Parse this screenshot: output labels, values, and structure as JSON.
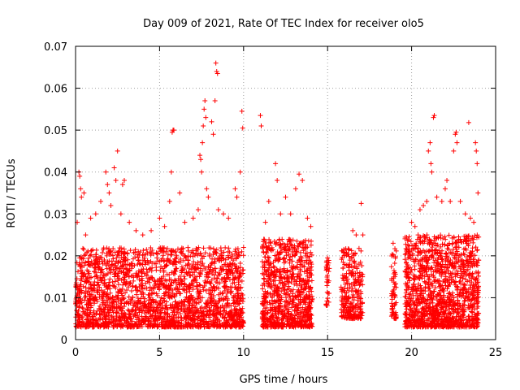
{
  "chart_data": {
    "type": "scatter",
    "title": "Day 009 of 2021, Rate Of TEC Index for receiver olo5",
    "xlabel": "GPS time / hours",
    "ylabel": "ROTI / TECUs",
    "xlim": [
      0,
      25
    ],
    "ylim": [
      0,
      0.07
    ],
    "x_ticks": [
      0,
      5,
      10,
      15,
      20,
      25
    ],
    "y_ticks": [
      0,
      0.01,
      0.02,
      0.03,
      0.04,
      0.05,
      0.06,
      0.07
    ],
    "x_tick_labels": [
      "0",
      "5",
      "10",
      "15",
      "20",
      "25"
    ],
    "y_tick_labels": [
      "0",
      "0.01",
      "0.02",
      "0.03",
      "0.04",
      "0.05",
      "0.06",
      "0.07"
    ],
    "grid": true,
    "marker": "+",
    "marker_color": "#ff0000",
    "series": [
      {
        "name": "ROTI",
        "points": [
          [
            0.1,
            0.028
          ],
          [
            0.2,
            0.04
          ],
          [
            0.25,
            0.039
          ],
          [
            0.3,
            0.036
          ],
          [
            0.35,
            0.034
          ],
          [
            0.5,
            0.035
          ],
          [
            0.6,
            0.025
          ],
          [
            0.9,
            0.029
          ],
          [
            1.2,
            0.03
          ],
          [
            1.5,
            0.033
          ],
          [
            1.8,
            0.04
          ],
          [
            1.9,
            0.037
          ],
          [
            2.0,
            0.035
          ],
          [
            2.1,
            0.032
          ],
          [
            2.3,
            0.041
          ],
          [
            2.4,
            0.038
          ],
          [
            2.5,
            0.045
          ],
          [
            2.7,
            0.03
          ],
          [
            2.8,
            0.037
          ],
          [
            2.9,
            0.038
          ],
          [
            3.2,
            0.028
          ],
          [
            3.6,
            0.026
          ],
          [
            4.0,
            0.025
          ],
          [
            4.5,
            0.026
          ],
          [
            5.0,
            0.029
          ],
          [
            5.3,
            0.027
          ],
          [
            5.6,
            0.033
          ],
          [
            5.7,
            0.04
          ],
          [
            5.75,
            0.0495
          ],
          [
            5.8,
            0.05
          ],
          [
            5.85,
            0.05
          ],
          [
            6.2,
            0.035
          ],
          [
            6.5,
            0.028
          ],
          [
            7.0,
            0.029
          ],
          [
            7.3,
            0.031
          ],
          [
            7.4,
            0.044
          ],
          [
            7.45,
            0.043
          ],
          [
            7.5,
            0.04
          ],
          [
            7.55,
            0.047
          ],
          [
            7.6,
            0.051
          ],
          [
            7.65,
            0.055
          ],
          [
            7.7,
            0.057
          ],
          [
            7.75,
            0.053
          ],
          [
            7.8,
            0.036
          ],
          [
            7.9,
            0.034
          ],
          [
            8.1,
            0.052
          ],
          [
            8.2,
            0.049
          ],
          [
            8.3,
            0.057
          ],
          [
            8.35,
            0.066
          ],
          [
            8.4,
            0.064
          ],
          [
            8.45,
            0.0635
          ],
          [
            8.5,
            0.031
          ],
          [
            8.8,
            0.03
          ],
          [
            9.1,
            0.029
          ],
          [
            9.5,
            0.036
          ],
          [
            9.6,
            0.034
          ],
          [
            9.8,
            0.04
          ],
          [
            9.9,
            0.0545
          ],
          [
            9.95,
            0.0505
          ],
          [
            10.0,
            0.022
          ],
          [
            11.0,
            0.0535
          ],
          [
            11.05,
            0.051
          ],
          [
            11.3,
            0.028
          ],
          [
            11.5,
            0.033
          ],
          [
            11.9,
            0.042
          ],
          [
            12.0,
            0.038
          ],
          [
            12.2,
            0.03
          ],
          [
            12.5,
            0.034
          ],
          [
            12.8,
            0.03
          ],
          [
            13.1,
            0.036
          ],
          [
            13.3,
            0.0395
          ],
          [
            13.5,
            0.038
          ],
          [
            13.8,
            0.029
          ],
          [
            14.0,
            0.027
          ],
          [
            15.0,
            0.0195
          ],
          [
            15.1,
            0.017
          ],
          [
            16.0,
            0.02
          ],
          [
            16.5,
            0.026
          ],
          [
            16.7,
            0.025
          ],
          [
            17.0,
            0.0325
          ],
          [
            17.1,
            0.025
          ],
          [
            18.9,
            0.023
          ],
          [
            19.0,
            0.016
          ],
          [
            20.0,
            0.028
          ],
          [
            20.2,
            0.027
          ],
          [
            20.5,
            0.031
          ],
          [
            20.7,
            0.032
          ],
          [
            20.9,
            0.033
          ],
          [
            21.0,
            0.045
          ],
          [
            21.1,
            0.047
          ],
          [
            21.15,
            0.042
          ],
          [
            21.2,
            0.04
          ],
          [
            21.3,
            0.053
          ],
          [
            21.35,
            0.0535
          ],
          [
            21.5,
            0.034
          ],
          [
            21.8,
            0.033
          ],
          [
            22.0,
            0.036
          ],
          [
            22.1,
            0.038
          ],
          [
            22.3,
            0.033
          ],
          [
            22.5,
            0.045
          ],
          [
            22.6,
            0.049
          ],
          [
            22.65,
            0.0495
          ],
          [
            22.7,
            0.047
          ],
          [
            22.9,
            0.033
          ],
          [
            23.2,
            0.03
          ],
          [
            23.4,
            0.0518
          ],
          [
            23.5,
            0.029
          ],
          [
            23.7,
            0.028
          ],
          [
            23.8,
            0.047
          ],
          [
            23.85,
            0.045
          ],
          [
            23.9,
            0.042
          ],
          [
            23.95,
            0.035
          ]
        ],
        "clusters": [
          {
            "x_range": [
              0.0,
              10.0
            ],
            "y_range": [
              0.003,
              0.022
            ],
            "count": 2200
          },
          {
            "x_range": [
              11.1,
              14.1
            ],
            "y_range": [
              0.003,
              0.024
            ],
            "count": 850
          },
          {
            "x_range": [
              14.9,
              15.1
            ],
            "y_range": [
              0.008,
              0.019
            ],
            "count": 30
          },
          {
            "x_range": [
              15.8,
              17.1
            ],
            "y_range": [
              0.005,
              0.022
            ],
            "count": 260
          },
          {
            "x_range": [
              18.8,
              19.1
            ],
            "y_range": [
              0.005,
              0.022
            ],
            "count": 60
          },
          {
            "x_range": [
              19.6,
              24.0
            ],
            "y_range": [
              0.003,
              0.025
            ],
            "count": 1300
          }
        ]
      }
    ]
  }
}
